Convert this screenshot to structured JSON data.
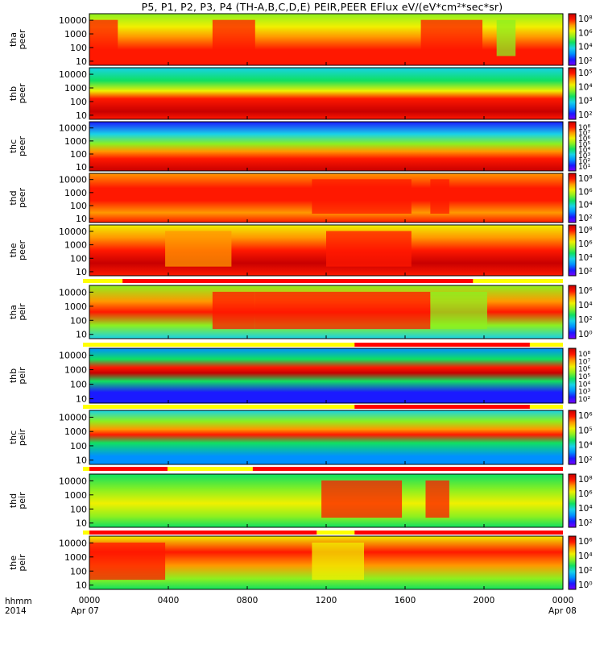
{
  "title": "P5, P1, P2, P3, P4 (TH-A,B,C,D,E) PEIR,PEER EFlux eV/(eV*cm²*sec*sr)",
  "colors": {
    "rainbow": [
      "#7a00ff",
      "#1a1aff",
      "#0090ff",
      "#18d2e8",
      "#10e060",
      "#8cf020",
      "#f0f000",
      "#ff9800",
      "#ff1800",
      "#c80000"
    ],
    "bar_red": "#ff0000",
    "bar_yellow": "#ffff00",
    "black": "#000000"
  },
  "x_axis": {
    "label_line1": "hhmm",
    "label_line2": "2014",
    "ticks": [
      "0000",
      "0400",
      "0800",
      "1200",
      "1600",
      "2000",
      "0000"
    ],
    "start_date": "Apr 07",
    "end_date": "Apr 08"
  },
  "panels": [
    {
      "id": "tha-peer",
      "probe": "tha",
      "type": "peer",
      "yticks": [
        "10000",
        "1000",
        "100",
        "10"
      ],
      "cbar_ticks": [
        "10⁸",
        "10⁶",
        "10⁴",
        "10²"
      ],
      "flag_bar": null
    },
    {
      "id": "thb-peer",
      "probe": "thb",
      "type": "peer",
      "yticks": [
        "10000",
        "1000",
        "100",
        "10"
      ],
      "cbar_ticks": [
        "10⁵",
        "10⁴",
        "10³",
        "10²"
      ],
      "flag_bar": null
    },
    {
      "id": "thc-peer",
      "probe": "thc",
      "type": "peer",
      "yticks": [
        "10000",
        "1000",
        "100",
        "10"
      ],
      "cbar_ticks": [
        "10⁸",
        "10⁷",
        "10⁶",
        "10⁵",
        "10⁴",
        "10³",
        "10²",
        "10¹"
      ],
      "flag_bar": null
    },
    {
      "id": "thd-peer",
      "probe": "thd",
      "type": "peer",
      "yticks": [
        "10000",
        "1000",
        "100",
        "10"
      ],
      "cbar_ticks": [
        "10⁸",
        "10⁶",
        "10⁴",
        "10²"
      ],
      "flag_bar": null
    },
    {
      "id": "the-peer",
      "probe": "the",
      "type": "peer",
      "yticks": [
        "10000",
        "1000",
        "100",
        "10"
      ],
      "cbar_ticks": [
        "10⁸",
        "10⁶",
        "10⁴",
        "10²"
      ],
      "flag_bar": [
        [
          0.07,
          0.81
        ]
      ]
    },
    {
      "id": "tha-peir",
      "probe": "tha",
      "type": "peir",
      "yticks": [
        "10000",
        "1000",
        "100",
        "10"
      ],
      "cbar_ticks": [
        "10⁶",
        "10⁴",
        "10²",
        "10⁰"
      ],
      "flag_bar": [
        [
          0.56,
          0.93
        ]
      ]
    },
    {
      "id": "thb-peir",
      "probe": "thb",
      "type": "peir",
      "yticks": [
        "10000",
        "1000",
        "100",
        "10"
      ],
      "cbar_ticks": [
        "10⁸",
        "10⁷",
        "10⁶",
        "10⁵",
        "10⁴",
        "10³",
        "10²"
      ],
      "flag_bar": [
        [
          0.56,
          0.93
        ]
      ]
    },
    {
      "id": "thc-peir",
      "probe": "thc",
      "type": "peir",
      "yticks": [
        "10000",
        "1000",
        "100",
        "10"
      ],
      "cbar_ticks": [
        "10⁶",
        "10⁵",
        "10⁴",
        "10²"
      ],
      "flag_bar": [
        [
          0.0,
          0.165
        ],
        [
          0.345,
          1.0
        ]
      ]
    },
    {
      "id": "thd-peir",
      "probe": "thd",
      "type": "peir",
      "yticks": [
        "10000",
        "1000",
        "100",
        "10"
      ],
      "cbar_ticks": [
        "10⁸",
        "10⁶",
        "10⁴",
        "10²"
      ],
      "flag_bar": [
        [
          0.0,
          0.48
        ],
        [
          0.56,
          1.0
        ]
      ]
    },
    {
      "id": "the-peir",
      "probe": "the",
      "type": "peir",
      "yticks": [
        "10000",
        "1000",
        "100",
        "10"
      ],
      "cbar_ticks": [
        "10⁶",
        "10⁴",
        "10²",
        "10⁰"
      ],
      "flag_bar": null
    }
  ],
  "chart_data": {
    "type": "heatmap",
    "title": "P5, P1, P2, P3, P4 (TH-A,B,C,D,E) PEIR,PEER EFlux eV/(eV*cm²*sec*sr)",
    "x": {
      "ticks": [
        "0000",
        "0400",
        "0800",
        "1200",
        "1600",
        "2000",
        "0000"
      ],
      "range_hours": [
        0,
        24
      ],
      "start_date": "Apr 07",
      "end_date": "Apr 08"
    },
    "y": {
      "scale": "log",
      "range": [
        5,
        30000
      ]
    },
    "colorbar_scale": "log",
    "series": [
      {
        "name": "tha peer"
      },
      {
        "name": "thb peer"
      },
      {
        "name": "thc peer"
      },
      {
        "name": "thd peer"
      },
      {
        "name": "the peer"
      },
      {
        "name": "tha peir"
      },
      {
        "name": "thb peir"
      },
      {
        "name": "thc peir"
      },
      {
        "name": "thd peir"
      },
      {
        "name": "the peir"
      }
    ]
  }
}
